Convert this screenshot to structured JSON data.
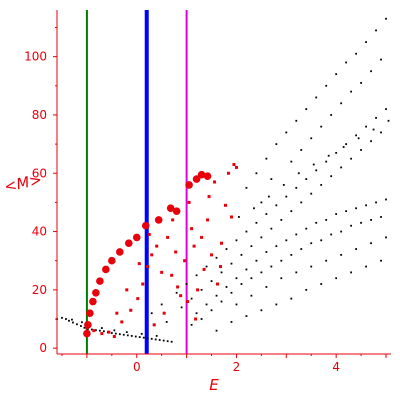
{
  "chart_data": {
    "type": "scatter",
    "title": "",
    "xlabel": "E",
    "ylabel": "<M>",
    "xlim": [
      -1.6,
      5.1
    ],
    "ylim": [
      -2,
      116
    ],
    "x_ticks": [
      0,
      2,
      4
    ],
    "y_ticks": [
      0,
      20,
      40,
      60,
      80,
      100
    ],
    "grid": false,
    "axis_color": "#e8000b",
    "vertical_lines": [
      {
        "x": -1.0,
        "color": "#007a00",
        "weight": "thin"
      },
      {
        "x": 0.2,
        "color": "#0000ff",
        "weight": "thick"
      },
      {
        "x": 1.0,
        "color": "#e000e0",
        "weight": "thin"
      }
    ],
    "series": [
      {
        "color": "#e8000b",
        "marker": "large-circle",
        "points": [
          [
            -1.0,
            5
          ],
          [
            -0.98,
            8
          ],
          [
            -0.94,
            12
          ],
          [
            -0.88,
            16
          ],
          [
            -0.82,
            19
          ],
          [
            -0.74,
            23
          ],
          [
            -0.62,
            27
          ],
          [
            -0.5,
            30
          ],
          [
            -0.34,
            33
          ],
          [
            -0.16,
            36
          ],
          [
            0.0,
            38
          ],
          [
            0.18,
            42
          ],
          [
            0.44,
            44
          ],
          [
            0.68,
            48
          ],
          [
            0.8,
            47
          ],
          [
            1.05,
            56
          ],
          [
            1.2,
            58
          ],
          [
            1.3,
            59.5
          ],
          [
            1.42,
            59
          ]
        ]
      },
      {
        "color": "#e8000b",
        "marker": "small-square",
        "points": [
          [
            -1.0,
            7
          ],
          [
            -0.86,
            6
          ],
          [
            -0.7,
            5
          ],
          [
            -0.56,
            5.5
          ],
          [
            -0.45,
            4
          ],
          [
            -0.3,
            9
          ],
          [
            -0.12,
            13
          ],
          [
            0.02,
            17
          ],
          [
            0.12,
            22
          ],
          [
            0.22,
            28
          ],
          [
            0.3,
            32
          ],
          [
            0.4,
            35
          ],
          [
            0.5,
            26
          ],
          [
            0.62,
            38
          ],
          [
            0.7,
            25
          ],
          [
            0.78,
            33
          ],
          [
            0.88,
            18
          ],
          [
            0.96,
            30
          ],
          [
            1.02,
            16
          ],
          [
            1.1,
            41
          ],
          [
            1.15,
            35
          ],
          [
            1.22,
            20
          ],
          [
            1.3,
            38
          ],
          [
            1.35,
            27
          ],
          [
            1.42,
            44
          ],
          [
            1.5,
            32
          ],
          [
            1.56,
            57
          ],
          [
            1.62,
            22
          ],
          [
            1.7,
            36
          ],
          [
            1.78,
            49
          ],
          [
            1.84,
            60
          ],
          [
            1.9,
            45
          ],
          [
            1.95,
            63
          ],
          [
            2.0,
            62
          ],
          [
            -0.4,
            12
          ],
          [
            -0.2,
            20
          ],
          [
            0.05,
            29
          ],
          [
            0.25,
            39
          ],
          [
            0.55,
            12
          ],
          [
            0.72,
            44
          ],
          [
            1.05,
            50
          ],
          [
            1.18,
            10
          ],
          [
            1.45,
            52
          ],
          [
            1.68,
            28
          ],
          [
            0.35,
            8
          ],
          [
            0.82,
            21
          ]
        ]
      },
      {
        "color": "#000000",
        "marker": "dot",
        "points": [
          [
            -1.6,
            10
          ],
          [
            -1.5,
            10.4
          ],
          [
            -1.42,
            10
          ],
          [
            -1.36,
            9.4
          ],
          [
            -1.28,
            8.8
          ],
          [
            -1.2,
            8.2
          ],
          [
            -1.12,
            7.6
          ],
          [
            -1.05,
            7
          ],
          [
            -0.98,
            6.6
          ],
          [
            -0.9,
            6.4
          ],
          [
            -0.82,
            6.2
          ],
          [
            -0.74,
            6
          ],
          [
            -0.66,
            5.8
          ],
          [
            -0.58,
            5.5
          ],
          [
            -0.5,
            5.2
          ],
          [
            -0.42,
            5
          ],
          [
            -0.34,
            4.8
          ],
          [
            -0.26,
            4.6
          ],
          [
            -0.18,
            4.4
          ],
          [
            -0.1,
            4.2
          ],
          [
            -0.02,
            4
          ],
          [
            0.06,
            3.8
          ],
          [
            0.14,
            3.6
          ],
          [
            0.22,
            3.4
          ],
          [
            0.3,
            3.2
          ],
          [
            0.38,
            3
          ],
          [
            0.46,
            2.8
          ],
          [
            0.54,
            2.6
          ],
          [
            0.62,
            2.4
          ],
          [
            0.7,
            2.2
          ],
          [
            -1.3,
            9.8
          ],
          [
            -1.1,
            8.9
          ],
          [
            -0.95,
            7.8
          ],
          [
            -0.7,
            6.9
          ],
          [
            -0.45,
            6.1
          ],
          [
            -0.2,
            5.5
          ],
          [
            0.1,
            4.9
          ],
          [
            0.4,
            4.2
          ],
          [
            0.3,
            12
          ],
          [
            0.5,
            15
          ],
          [
            0.6,
            9
          ],
          [
            0.8,
            19
          ],
          [
            0.9,
            14
          ],
          [
            1.0,
            22
          ],
          [
            1.1,
            17
          ],
          [
            1.2,
            25
          ],
          [
            1.3,
            20
          ],
          [
            1.4,
            28
          ],
          [
            1.5,
            23
          ],
          [
            1.6,
            31
          ],
          [
            1.7,
            26
          ],
          [
            1.8,
            34
          ],
          [
            1.9,
            29
          ],
          [
            2.0,
            37
          ],
          [
            2.1,
            32
          ],
          [
            2.2,
            40
          ],
          [
            2.3,
            35
          ],
          [
            2.4,
            43
          ],
          [
            2.5,
            38
          ],
          [
            2.6,
            46
          ],
          [
            2.7,
            41
          ],
          [
            2.8,
            49
          ],
          [
            2.9,
            44
          ],
          [
            3.0,
            52
          ],
          [
            3.1,
            47
          ],
          [
            3.2,
            55
          ],
          [
            3.3,
            50
          ],
          [
            3.4,
            58
          ],
          [
            3.5,
            53
          ],
          [
            3.6,
            61
          ],
          [
            3.7,
            56
          ],
          [
            3.8,
            64
          ],
          [
            3.9,
            59
          ],
          [
            4.0,
            67
          ],
          [
            4.1,
            62
          ],
          [
            4.2,
            70
          ],
          [
            4.3,
            65
          ],
          [
            4.4,
            73
          ],
          [
            4.5,
            68
          ],
          [
            4.6,
            76
          ],
          [
            4.7,
            71
          ],
          [
            4.8,
            79
          ],
          [
            4.9,
            74
          ],
          [
            5.0,
            82
          ],
          [
            1.2,
            12
          ],
          [
            1.4,
            15
          ],
          [
            1.6,
            18
          ],
          [
            1.8,
            21
          ],
          [
            2.0,
            24
          ],
          [
            2.2,
            27
          ],
          [
            2.4,
            30
          ],
          [
            2.6,
            33
          ],
          [
            2.8,
            35
          ],
          [
            3.0,
            37
          ],
          [
            3.2,
            39
          ],
          [
            3.4,
            41
          ],
          [
            3.6,
            43
          ],
          [
            3.8,
            44
          ],
          [
            4.0,
            46
          ],
          [
            4.2,
            47
          ],
          [
            4.4,
            48
          ],
          [
            4.6,
            49
          ],
          [
            4.8,
            50
          ],
          [
            5.0,
            51
          ],
          [
            1.1,
            8
          ],
          [
            1.3,
            10
          ],
          [
            1.5,
            13
          ],
          [
            1.7,
            16
          ],
          [
            1.9,
            19
          ],
          [
            2.1,
            22
          ],
          [
            2.3,
            24
          ],
          [
            2.5,
            26
          ],
          [
            2.7,
            28
          ],
          [
            2.9,
            30
          ],
          [
            3.1,
            32
          ],
          [
            3.3,
            34
          ],
          [
            3.5,
            36
          ],
          [
            3.7,
            37
          ],
          [
            3.9,
            39
          ],
          [
            4.1,
            40
          ],
          [
            4.3,
            42
          ],
          [
            4.5,
            43
          ],
          [
            4.7,
            44
          ],
          [
            4.9,
            45
          ],
          [
            2.4,
            60
          ],
          [
            2.6,
            65
          ],
          [
            2.8,
            70
          ],
          [
            3.0,
            74
          ],
          [
            3.2,
            78
          ],
          [
            3.4,
            82
          ],
          [
            3.6,
            86
          ],
          [
            3.8,
            90
          ],
          [
            4.0,
            94
          ],
          [
            4.2,
            98
          ],
          [
            4.4,
            101
          ],
          [
            4.6,
            105
          ],
          [
            4.8,
            109
          ],
          [
            5.0,
            113
          ],
          [
            2.2,
            55
          ],
          [
            2.5,
            50
          ],
          [
            2.7,
            58
          ],
          [
            3.1,
            64
          ],
          [
            3.3,
            68
          ],
          [
            3.5,
            72
          ],
          [
            3.7,
            76
          ],
          [
            3.9,
            80
          ],
          [
            4.1,
            84
          ],
          [
            4.3,
            88
          ],
          [
            4.5,
            91
          ],
          [
            4.7,
            95
          ],
          [
            4.9,
            99
          ],
          [
            2.0,
            15
          ],
          [
            2.3,
            18
          ],
          [
            2.6,
            21
          ],
          [
            2.9,
            24
          ],
          [
            3.2,
            26
          ],
          [
            3.5,
            28
          ],
          [
            3.8,
            30
          ],
          [
            4.1,
            32
          ],
          [
            4.4,
            34
          ],
          [
            4.7,
            36
          ],
          [
            5.0,
            38
          ],
          [
            1.6,
            6
          ],
          [
            1.9,
            9
          ],
          [
            2.2,
            11
          ],
          [
            2.5,
            13
          ],
          [
            2.8,
            15
          ],
          [
            3.1,
            17
          ],
          [
            3.4,
            20
          ],
          [
            3.7,
            22
          ],
          [
            4.0,
            24
          ],
          [
            4.3,
            26
          ],
          [
            4.6,
            28
          ],
          [
            4.9,
            30
          ],
          [
            2.05,
            45
          ],
          [
            2.35,
            48
          ],
          [
            2.65,
            52
          ],
          [
            2.95,
            56
          ],
          [
            3.25,
            60
          ],
          [
            3.55,
            63
          ],
          [
            3.85,
            66
          ],
          [
            4.15,
            69
          ],
          [
            4.45,
            72
          ],
          [
            4.75,
            75
          ],
          [
            5.05,
            78
          ]
        ]
      }
    ]
  }
}
